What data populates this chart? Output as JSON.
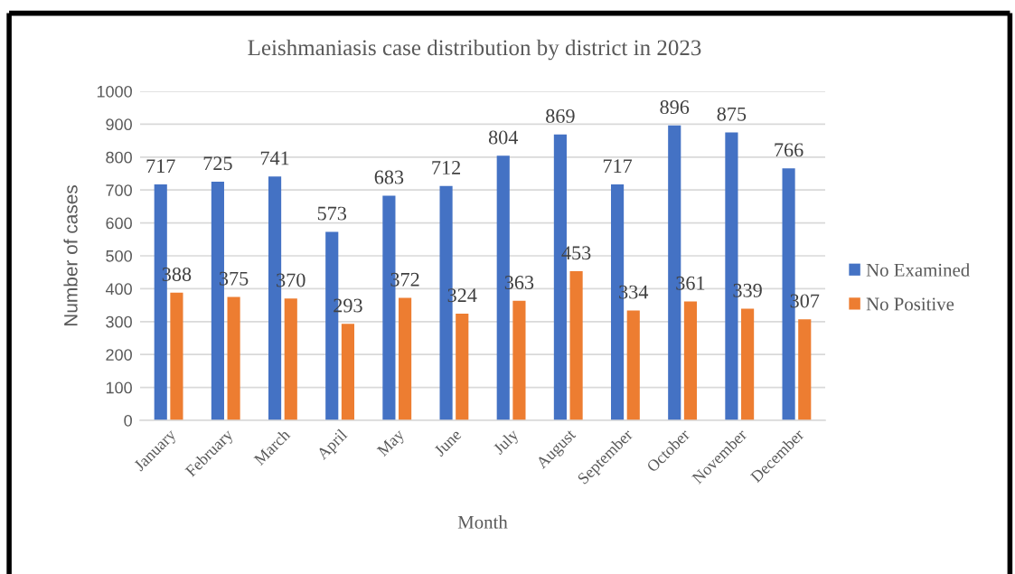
{
  "chart_data": {
    "type": "bar",
    "title": "Leishmaniasis case distribution by district in 2023",
    "xlabel": "Month",
    "ylabel": "Number of cases",
    "categories": [
      "January",
      "February",
      "March",
      "April",
      "May",
      "June",
      "July",
      "August",
      "September",
      "October",
      "November",
      "December"
    ],
    "series": [
      {
        "name": "No Examined",
        "color": "#4472c4",
        "values": [
          717,
          725,
          741,
          573,
          683,
          712,
          804,
          869,
          717,
          896,
          875,
          766
        ]
      },
      {
        "name": "No Positive",
        "color": "#ed7d31",
        "values": [
          388,
          375,
          370,
          293,
          372,
          324,
          363,
          453,
          334,
          361,
          339,
          307
        ]
      }
    ],
    "ylim": [
      0,
      1000
    ],
    "yticks": [
      0,
      100,
      200,
      300,
      400,
      500,
      600,
      700,
      800,
      900,
      1000
    ],
    "grid": "y",
    "legend": "right",
    "data_labels": true
  }
}
